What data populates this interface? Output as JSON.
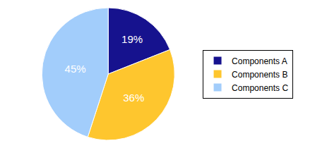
{
  "chart_data": {
    "type": "pie",
    "categories": [
      "Components A",
      "Components B",
      "Components C"
    ],
    "values": [
      19,
      36,
      45
    ],
    "value_labels": [
      "19%",
      "36%",
      "45%"
    ],
    "colors": [
      "#16128e",
      "#fec62e",
      "#a2cdfb"
    ],
    "data_labels": true,
    "legend": "right"
  }
}
